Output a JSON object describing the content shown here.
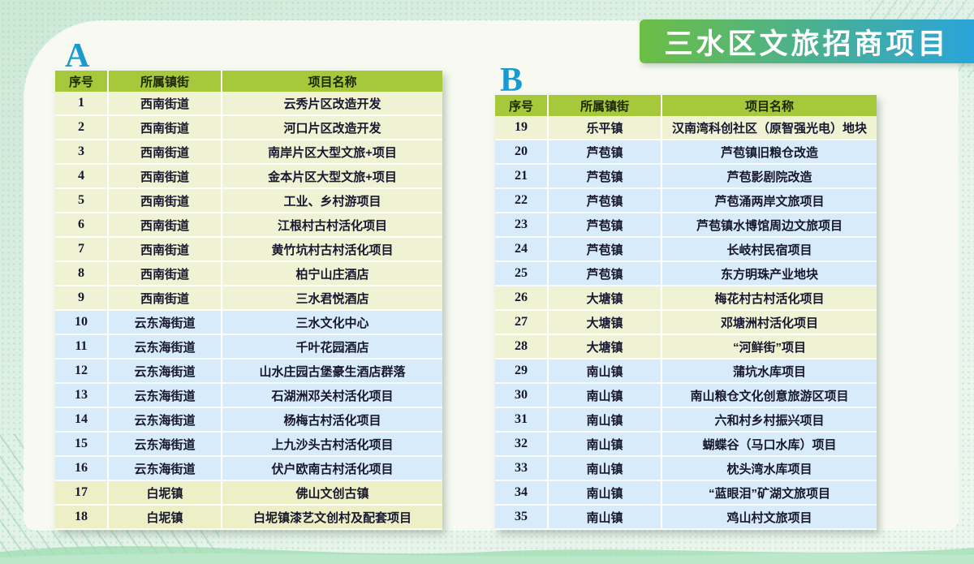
{
  "title": "三水区文旅招商项目",
  "colors": {
    "banner_gradient_from": "#6cbe44",
    "banner_gradient_to": "#2aa4d9",
    "header_bg": "#a6c93b",
    "label_blue": "#1b9ad2",
    "row_groups": {
      "green": "#eff3d4",
      "blue": "#d8ebfa",
      "yellow": "#edf0c6"
    }
  },
  "tables": [
    {
      "label": "A",
      "headers": [
        "序号",
        "所属镇街",
        "项目名称"
      ],
      "rows": [
        {
          "no": "1",
          "town": "西南街道",
          "project": "云秀片区改造开发",
          "group": "green"
        },
        {
          "no": "2",
          "town": "西南街道",
          "project": "河口片区改造开发",
          "group": "green"
        },
        {
          "no": "3",
          "town": "西南街道",
          "project": "南岸片区大型文旅+项目",
          "group": "green"
        },
        {
          "no": "4",
          "town": "西南街道",
          "project": "金本片区大型文旅+项目",
          "group": "green"
        },
        {
          "no": "5",
          "town": "西南街道",
          "project": "工业、乡村游项目",
          "group": "green"
        },
        {
          "no": "6",
          "town": "西南街道",
          "project": "江根村古村活化项目",
          "group": "green"
        },
        {
          "no": "7",
          "town": "西南街道",
          "project": "黄竹坑村古村活化项目",
          "group": "green"
        },
        {
          "no": "8",
          "town": "西南街道",
          "project": "柏宁山庄酒店",
          "group": "green"
        },
        {
          "no": "9",
          "town": "西南街道",
          "project": "三水君悦酒店",
          "group": "green"
        },
        {
          "no": "10",
          "town": "云东海街道",
          "project": "三水文化中心",
          "group": "blue"
        },
        {
          "no": "11",
          "town": "云东海街道",
          "project": "千叶花园酒店",
          "group": "blue"
        },
        {
          "no": "12",
          "town": "云东海街道",
          "project": "山水庄园古堡豪生酒店群落",
          "group": "blue"
        },
        {
          "no": "13",
          "town": "云东海街道",
          "project": "石湖洲邓关村活化项目",
          "group": "blue"
        },
        {
          "no": "14",
          "town": "云东海街道",
          "project": "杨梅古村活化项目",
          "group": "blue"
        },
        {
          "no": "15",
          "town": "云东海街道",
          "project": "上九沙头古村活化项目",
          "group": "blue"
        },
        {
          "no": "16",
          "town": "云东海街道",
          "project": "伏户欧南古村活化项目",
          "group": "blue"
        },
        {
          "no": "17",
          "town": "白坭镇",
          "project": "佛山文创古镇",
          "group": "yellow"
        },
        {
          "no": "18",
          "town": "白坭镇",
          "project": "白坭镇漆艺文创村及配套项目",
          "group": "yellow"
        }
      ]
    },
    {
      "label": "B",
      "headers": [
        "序号",
        "所属镇街",
        "项目名称"
      ],
      "rows": [
        {
          "no": "19",
          "town": "乐平镇",
          "project": "汉南湾科创社区（原智强光电）地块",
          "group": "green"
        },
        {
          "no": "20",
          "town": "芦苞镇",
          "project": "芦苞镇旧粮仓改造",
          "group": "blue"
        },
        {
          "no": "21",
          "town": "芦苞镇",
          "project": "芦苞影剧院改造",
          "group": "blue"
        },
        {
          "no": "22",
          "town": "芦苞镇",
          "project": "芦苞涌两岸文旅项目",
          "group": "blue"
        },
        {
          "no": "23",
          "town": "芦苞镇",
          "project": "芦苞镇水博馆周边文旅项目",
          "group": "blue"
        },
        {
          "no": "24",
          "town": "芦苞镇",
          "project": "长岐村民宿项目",
          "group": "blue"
        },
        {
          "no": "25",
          "town": "芦苞镇",
          "project": "东方明珠产业地块",
          "group": "blue"
        },
        {
          "no": "26",
          "town": "大塘镇",
          "project": "梅花村古村活化项目",
          "group": "green"
        },
        {
          "no": "27",
          "town": "大塘镇",
          "project": "邓塘洲村活化项目",
          "group": "green"
        },
        {
          "no": "28",
          "town": "大塘镇",
          "project": "“河鲜街”项目",
          "group": "green"
        },
        {
          "no": "29",
          "town": "南山镇",
          "project": "蒲坑水库项目",
          "group": "blue"
        },
        {
          "no": "30",
          "town": "南山镇",
          "project": "南山粮仓文化创意旅游区项目",
          "group": "blue"
        },
        {
          "no": "31",
          "town": "南山镇",
          "project": "六和村乡村振兴项目",
          "group": "blue"
        },
        {
          "no": "32",
          "town": "南山镇",
          "project": "蝴蝶谷（马口水库）项目",
          "group": "blue"
        },
        {
          "no": "33",
          "town": "南山镇",
          "project": "枕头湾水库项目",
          "group": "blue"
        },
        {
          "no": "34",
          "town": "南山镇",
          "project": "“蓝眼泪”矿湖文旅项目",
          "group": "blue"
        },
        {
          "no": "35",
          "town": "南山镇",
          "project": "鸡山村文旅项目",
          "group": "blue"
        }
      ]
    }
  ]
}
